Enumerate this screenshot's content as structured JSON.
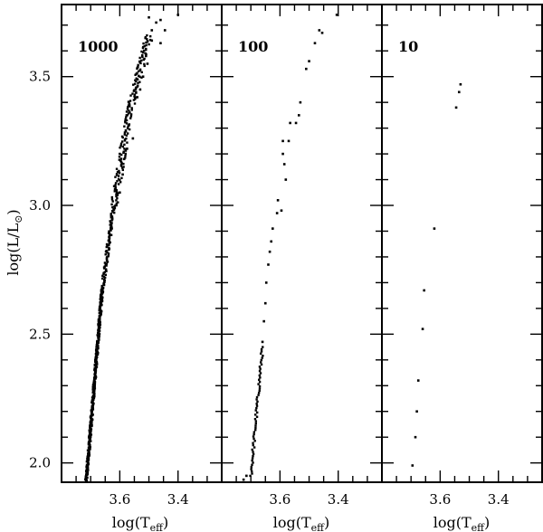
{
  "chart_data": {
    "type": "scatter",
    "xlabel": "log(T",
    "xlabel_sub": "eff",
    "xlabel_close": ")",
    "ylabel": "log(L/L",
    "ylabel_sub": "⊙",
    "ylabel_close": ")",
    "xlim": [
      3.8,
      3.25
    ],
    "ylim": [
      1.925,
      3.78
    ],
    "x_reversed": true,
    "xticks": [
      3.6,
      3.4
    ],
    "yticks": [
      2.0,
      2.5,
      3.0,
      3.5
    ],
    "xtick_labels": [
      "3.6",
      "3.4"
    ],
    "ytick_labels": [
      "2.0",
      "2.5",
      "3.0",
      "3.5"
    ],
    "panels": [
      {
        "label": "1000",
        "segments": [
          {
            "x0": 3.715,
            "y0": 1.93,
            "x1": 3.66,
            "y1": 2.68,
            "n": 360,
            "jitter": 0.004
          },
          {
            "x0": 3.66,
            "y0": 2.68,
            "x1": 3.62,
            "y1": 3.0,
            "n": 90,
            "jitter": 0.006
          },
          {
            "x0": 3.62,
            "y0": 3.0,
            "x1": 3.57,
            "y1": 3.35,
            "n": 90,
            "jitter": 0.012
          },
          {
            "x0": 3.57,
            "y0": 3.35,
            "x1": 3.5,
            "y1": 3.66,
            "n": 90,
            "jitter": 0.012
          }
        ],
        "points": [
          {
            "x": 3.49,
            "y": 3.68
          },
          {
            "x": 3.475,
            "y": 3.71
          },
          {
            "x": 3.46,
            "y": 3.72
          },
          {
            "x": 3.445,
            "y": 3.68
          },
          {
            "x": 3.5,
            "y": 3.73
          },
          {
            "x": 3.4,
            "y": 3.74
          },
          {
            "x": 3.52,
            "y": 3.5
          },
          {
            "x": 3.505,
            "y": 3.55
          },
          {
            "x": 3.59,
            "y": 3.12
          },
          {
            "x": 3.6,
            "y": 3.05
          },
          {
            "x": 3.585,
            "y": 3.18
          },
          {
            "x": 3.575,
            "y": 3.22
          },
          {
            "x": 3.555,
            "y": 3.26
          },
          {
            "x": 3.54,
            "y": 3.42
          },
          {
            "x": 3.51,
            "y": 3.58
          },
          {
            "x": 3.46,
            "y": 3.63
          },
          {
            "x": 3.49,
            "y": 3.64
          },
          {
            "x": 3.6,
            "y": 3.2
          },
          {
            "x": 3.57,
            "y": 3.31
          },
          {
            "x": 3.53,
            "y": 3.45
          }
        ]
      },
      {
        "label": "100",
        "segments": [
          {
            "x0": 3.7,
            "y0": 1.95,
            "x1": 3.66,
            "y1": 2.45,
            "n": 60,
            "jitter": 0.004
          }
        ],
        "points": [
          {
            "x": 3.725,
            "y": 1.935
          },
          {
            "x": 3.715,
            "y": 1.95
          },
          {
            "x": 3.66,
            "y": 2.47
          },
          {
            "x": 3.655,
            "y": 2.55
          },
          {
            "x": 3.65,
            "y": 2.62
          },
          {
            "x": 3.647,
            "y": 2.7
          },
          {
            "x": 3.64,
            "y": 2.77
          },
          {
            "x": 3.635,
            "y": 2.82
          },
          {
            "x": 3.63,
            "y": 2.86
          },
          {
            "x": 3.625,
            "y": 2.91
          },
          {
            "x": 3.61,
            "y": 2.97
          },
          {
            "x": 3.607,
            "y": 3.02
          },
          {
            "x": 3.595,
            "y": 2.98
          },
          {
            "x": 3.58,
            "y": 3.1
          },
          {
            "x": 3.585,
            "y": 3.16
          },
          {
            "x": 3.59,
            "y": 3.2
          },
          {
            "x": 3.59,
            "y": 3.25
          },
          {
            "x": 3.57,
            "y": 3.25
          },
          {
            "x": 3.565,
            "y": 3.32
          },
          {
            "x": 3.545,
            "y": 3.32
          },
          {
            "x": 3.535,
            "y": 3.35
          },
          {
            "x": 3.53,
            "y": 3.4
          },
          {
            "x": 3.51,
            "y": 3.53
          },
          {
            "x": 3.5,
            "y": 3.56
          },
          {
            "x": 3.48,
            "y": 3.63
          },
          {
            "x": 3.465,
            "y": 3.68
          },
          {
            "x": 3.455,
            "y": 3.67
          },
          {
            "x": 3.405,
            "y": 3.74
          }
        ]
      },
      {
        "label": "10",
        "segments": [],
        "points": [
          {
            "x": 3.695,
            "y": 1.99
          },
          {
            "x": 3.685,
            "y": 2.1
          },
          {
            "x": 3.68,
            "y": 2.2
          },
          {
            "x": 3.675,
            "y": 2.32
          },
          {
            "x": 3.66,
            "y": 2.52
          },
          {
            "x": 3.655,
            "y": 2.67
          },
          {
            "x": 3.62,
            "y": 2.91
          },
          {
            "x": 3.545,
            "y": 3.38
          },
          {
            "x": 3.535,
            "y": 3.44
          },
          {
            "x": 3.53,
            "y": 3.47
          }
        ]
      }
    ]
  }
}
